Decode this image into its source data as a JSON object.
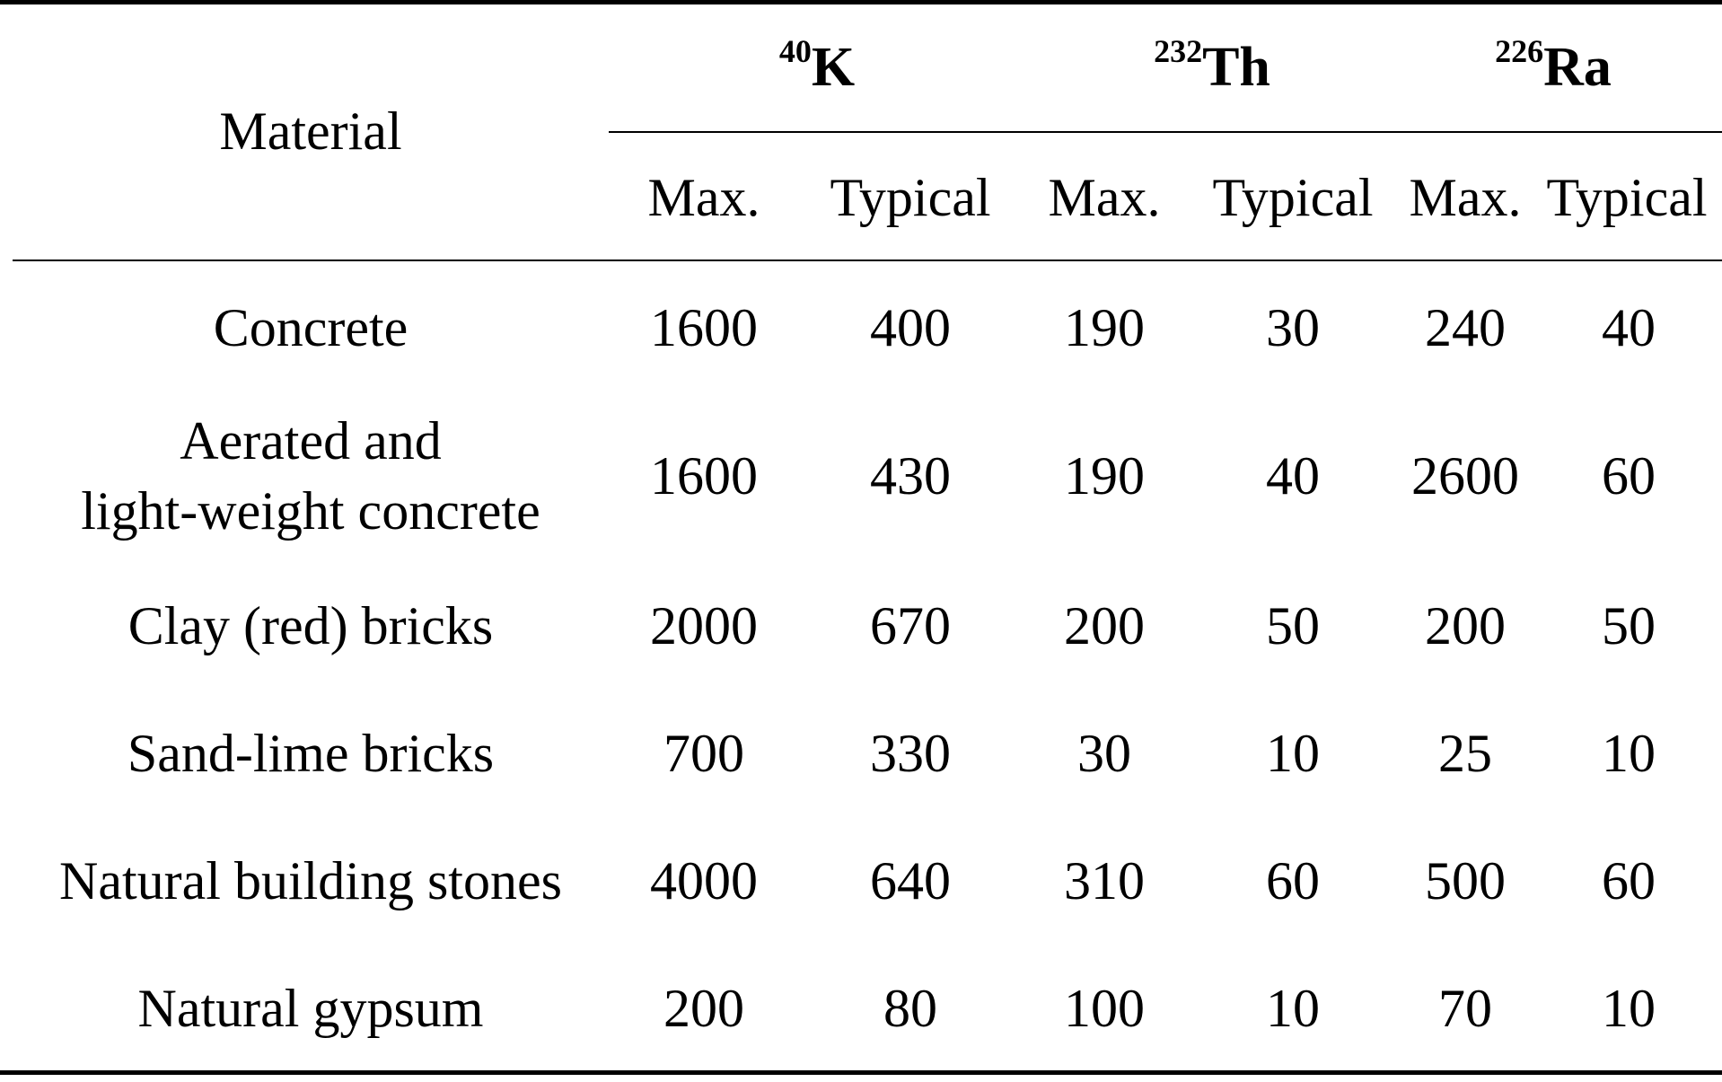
{
  "table": {
    "material_header": "Material",
    "isotopes": [
      {
        "mass": "40",
        "symbol": "K"
      },
      {
        "mass": "232",
        "symbol": "Th"
      },
      {
        "mass": "226",
        "symbol": "Ra"
      }
    ],
    "subheaders": [
      "Max.",
      "Typical",
      "Max.",
      "Typical",
      "Max.",
      "Typical"
    ],
    "rows": [
      {
        "material": "Concrete",
        "values": [
          "1600",
          "400",
          "190",
          "30",
          "240",
          "40"
        ]
      },
      {
        "material": "Aerated and light-weight concrete",
        "material_lines": [
          "Aerated and",
          "light-weight concrete"
        ],
        "values": [
          "1600",
          "430",
          "190",
          "40",
          "2600",
          "60"
        ]
      },
      {
        "material": "Clay (red) bricks",
        "values": [
          "2000",
          "670",
          "200",
          "50",
          "200",
          "50"
        ]
      },
      {
        "material": "Sand-lime bricks",
        "values": [
          "700",
          "330",
          "30",
          "10",
          "25",
          "10"
        ]
      },
      {
        "material": "Natural building stones",
        "values": [
          "4000",
          "640",
          "310",
          "60",
          "500",
          "60"
        ]
      },
      {
        "material": "Natural gypsum",
        "values": [
          "200",
          "80",
          "100",
          "10",
          "70",
          "10"
        ]
      }
    ]
  }
}
